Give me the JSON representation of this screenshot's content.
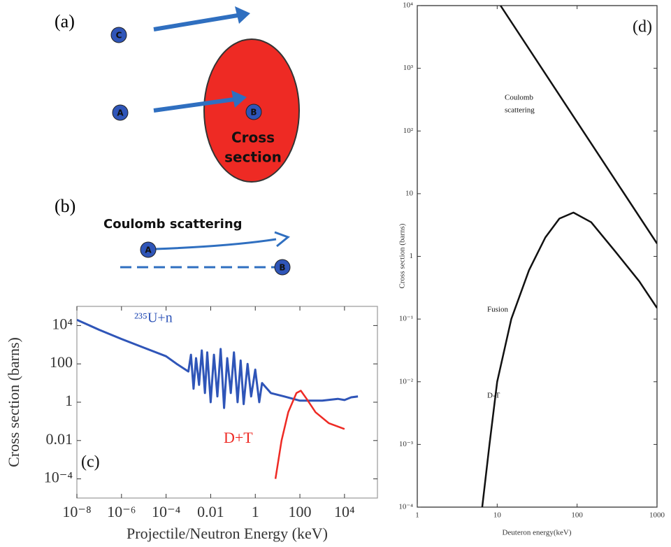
{
  "diagram": {
    "panel_a": "(a)",
    "particle_c": "C",
    "particle_a": "A",
    "particle_b": "B",
    "cross_section_1": "Cross",
    "cross_section_2": "section",
    "panel_b": "(b)",
    "coulomb_title": "Coulomb scattering",
    "particle_a2": "A",
    "particle_b2": "B"
  },
  "chart_data": [
    {
      "type": "line",
      "xlabel": "Projectile/Neutron Energy (keV)",
      "ylabel": "Cross section (barns)",
      "xscale": "log",
      "yscale": "log",
      "xlim": [
        1e-08,
        300000
      ],
      "ylim": [
        1e-05,
        100000
      ],
      "xticks": [
        {
          "value": 1e-08,
          "label": "10⁻⁸"
        },
        {
          "value": 1e-06,
          "label": "10⁻⁶"
        },
        {
          "value": 0.0001,
          "label": "10⁻⁴"
        },
        0.01,
        1,
        100,
        {
          "value": 10000,
          "label": "10⁴"
        }
      ],
      "yticks": [
        {
          "value": 0.0001,
          "label": "10⁻⁴"
        },
        0.01,
        1,
        100,
        {
          "value": 10000,
          "label": "10⁴"
        }
      ],
      "annotations": [
        "²³⁵U+n",
        "D+T",
        "(c)"
      ],
      "series": [
        {
          "name": "²³⁵U+n",
          "color": "#2f55b8",
          "x": [
            1e-08,
            1e-07,
            1e-06,
            1e-05,
            0.0001,
            0.0003,
            0.001,
            0.0013,
            0.0017,
            0.0022,
            0.003,
            0.004,
            0.0055,
            0.007,
            0.01,
            0.014,
            0.02,
            0.028,
            0.04,
            0.055,
            0.08,
            0.11,
            0.16,
            0.22,
            0.3,
            0.45,
            0.65,
            1,
            1.5,
            2,
            5,
            20,
            100,
            1000,
            5000,
            10000,
            20000,
            40000
          ],
          "values": [
            20000,
            6000,
            2000,
            700,
            250,
            100,
            40,
            300,
            5,
            200,
            8,
            500,
            3,
            400,
            1,
            300,
            2,
            600,
            0.5,
            200,
            3,
            400,
            1,
            150,
            0.8,
            100,
            2,
            50,
            1,
            10,
            3,
            2,
            1.2,
            1.2,
            1.5,
            1.3,
            1.8,
            2
          ]
        },
        {
          "name": "D+T",
          "color": "#ee2a24",
          "x": [
            8,
            15,
            30,
            70,
            110,
            200,
            500,
            2000,
            10000
          ],
          "values": [
            0.0001,
            0.01,
            0.3,
            3,
            4,
            1.5,
            0.3,
            0.08,
            0.04
          ]
        }
      ]
    },
    {
      "type": "line",
      "xlabel": "Deuteron energy(keV)",
      "ylabel": "Cross section (barns)",
      "xscale": "log",
      "yscale": "log",
      "xlim": [
        1,
        1000
      ],
      "ylim": [
        0.0001,
        10000
      ],
      "xticks": [
        1,
        10,
        100,
        1000
      ],
      "yticks": [
        {
          "value": 0.0001,
          "label": "10⁻⁴"
        },
        {
          "value": 0.001,
          "label": "10⁻³"
        },
        {
          "value": 0.01,
          "label": "10⁻²"
        },
        {
          "value": 0.1,
          "label": "10⁻¹"
        },
        1,
        10,
        {
          "value": 100,
          "label": "10²"
        },
        {
          "value": 1000,
          "label": "10³"
        },
        {
          "value": 10000,
          "label": "10⁴"
        }
      ],
      "annotations": [
        "Coulomb",
        "scattering",
        "Fusion",
        "D-T",
        "(d)"
      ],
      "series": [
        {
          "name": "Coulomb scattering",
          "color": "#111111",
          "x": [
            11,
            1000
          ],
          "values": [
            10000,
            1.6
          ]
        },
        {
          "name": "Fusion",
          "color": "#111111",
          "x": [
            6.5,
            8,
            10,
            15,
            25,
            40,
            60,
            90,
            150,
            300,
            600,
            1000
          ],
          "values": [
            0.0001,
            0.001,
            0.01,
            0.1,
            0.6,
            2,
            4,
            5,
            3.5,
            1.2,
            0.4,
            0.15
          ]
        }
      ]
    }
  ]
}
